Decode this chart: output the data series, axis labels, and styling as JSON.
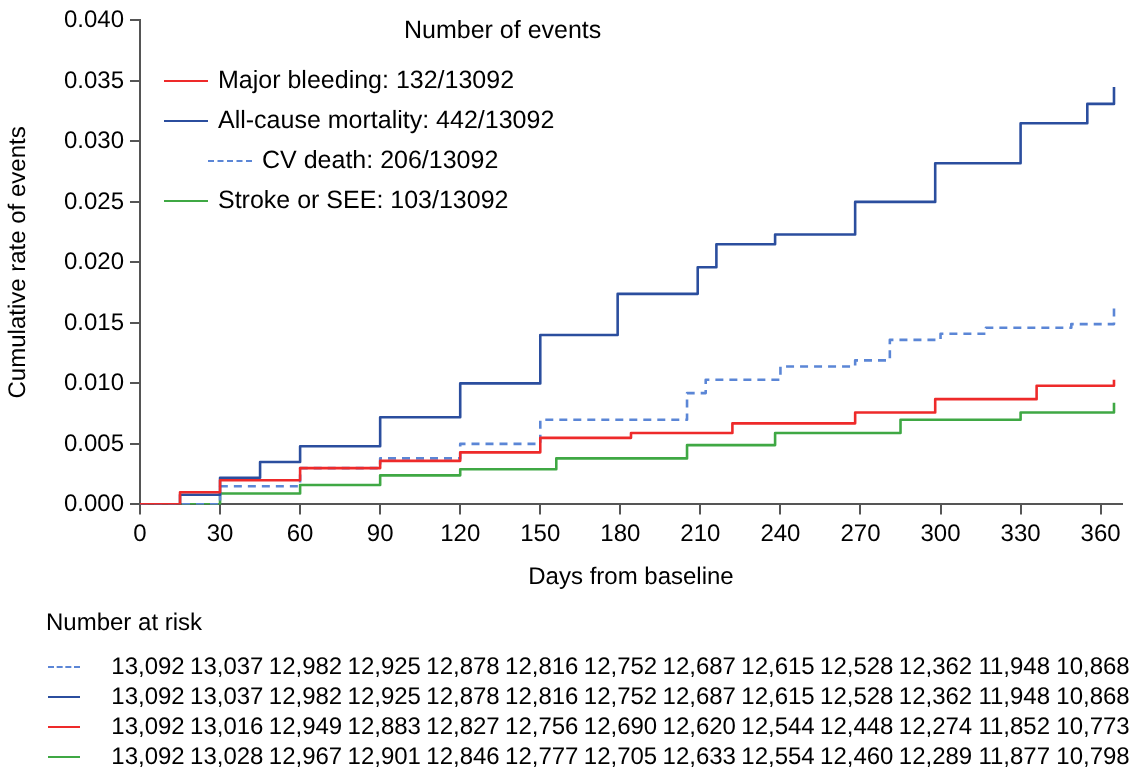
{
  "chart_data": {
    "type": "step",
    "xlabel": "Days from baseline",
    "ylabel": "Cumulative rate of events",
    "legend_title": "Number of events",
    "legend": "top left",
    "grid": false,
    "marker": "none",
    "xlim": [
      0,
      368
    ],
    "xticks": [
      0,
      30,
      60,
      90,
      120,
      150,
      180,
      210,
      240,
      270,
      300,
      330,
      360
    ],
    "ylim": [
      0,
      0.04
    ],
    "yticks": [
      {
        "value": 0,
        "label": "0.000"
      },
      {
        "value": 0.005,
        "label": "0.005"
      },
      {
        "value": 0.01,
        "label": "0.010"
      },
      {
        "value": 0.015,
        "label": "0.015"
      },
      {
        "value": 0.02,
        "label": "0.020"
      },
      {
        "value": 0.025,
        "label": "0.025"
      },
      {
        "value": 0.03,
        "label": "0.030"
      },
      {
        "value": 0.035,
        "label": "0.035"
      },
      {
        "value": 0.04,
        "label": "0.040"
      }
    ],
    "series": [
      {
        "name": "Major bleeding: 132/13092",
        "color": "#ee2a2a",
        "line_style": "solid",
        "x": [
          0,
          15,
          30,
          60,
          90,
          120,
          150,
          184,
          222,
          268,
          298,
          336,
          365
        ],
        "values": [
          0,
          0.001,
          0.002,
          0.003,
          0.0036,
          0.0043,
          0.0055,
          0.0059,
          0.0067,
          0.0076,
          0.0087,
          0.0098,
          0.0103
        ]
      },
      {
        "name": "All-cause mortality: 442/13092",
        "color": "#2b4e9e",
        "line_style": "solid",
        "x": [
          0,
          15,
          30,
          45,
          60,
          90,
          120,
          150,
          179,
          209,
          216,
          238,
          268,
          298,
          330,
          355,
          365
        ],
        "values": [
          0,
          0.0008,
          0.0022,
          0.0035,
          0.0048,
          0.0072,
          0.01,
          0.014,
          0.0174,
          0.0196,
          0.0215,
          0.0223,
          0.025,
          0.0282,
          0.0315,
          0.0331,
          0.0345
        ]
      },
      {
        "name": "CV death: 206/13092",
        "color": "#5b86d6",
        "line_style": "dashed",
        "x": [
          0,
          30,
          60,
          90,
          120,
          150,
          205,
          212,
          240,
          268,
          281,
          300,
          317,
          349,
          365
        ],
        "values": [
          0,
          0.0015,
          0.003,
          0.0038,
          0.005,
          0.007,
          0.0092,
          0.0103,
          0.0114,
          0.0119,
          0.0136,
          0.0141,
          0.0146,
          0.0149,
          0.0162
        ]
      },
      {
        "name": "Stroke or SEE: 103/13092",
        "color": "#3fa844",
        "line_style": "solid",
        "x": [
          0,
          30,
          60,
          90,
          120,
          156,
          205,
          238,
          285,
          330,
          365
        ],
        "values": [
          0,
          0.0009,
          0.0016,
          0.0024,
          0.0029,
          0.0038,
          0.0049,
          0.0059,
          0.007,
          0.0076,
          0.0084
        ]
      }
    ],
    "annotations": [
      "Number at risk",
      "13,092 13,037 12,982 12,925 12,878 12,816 12,752 12,687 12,615 12,528 12,362 11,948 10,868",
      "13,092 13,037 12,982 12,925 12,878 12,816 12,752 12,687 12,615 12,528 12,362 11,948 10,868",
      "13,092 13,016 12,949 12,883 12,827 12,756 12,690 12,620 12,544 12,448 12,274 11,852 10,773",
      "13,092 13,028 12,967 12,901 12,846 12,777 12,705 12,633 12,554 12,460 12,289 11,877 10,798"
    ]
  }
}
